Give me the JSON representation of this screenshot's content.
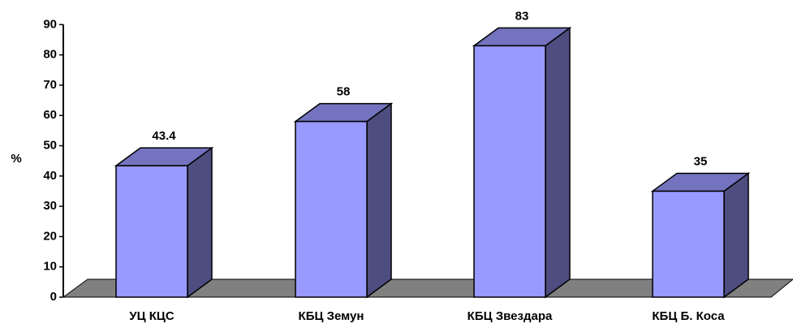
{
  "chart_data": {
    "type": "bar",
    "categories": [
      "УЦ КЦС",
      "КБЦ Земун",
      "КБЦ Звездара",
      "КБЦ Б. Коса"
    ],
    "values": [
      43.4,
      58,
      83,
      35
    ],
    "color": "#9999ff",
    "ylabel": "%",
    "ylim": [
      0,
      90
    ],
    "yticks": [
      0,
      10,
      20,
      30,
      40,
      50,
      60,
      70,
      80,
      90
    ]
  }
}
